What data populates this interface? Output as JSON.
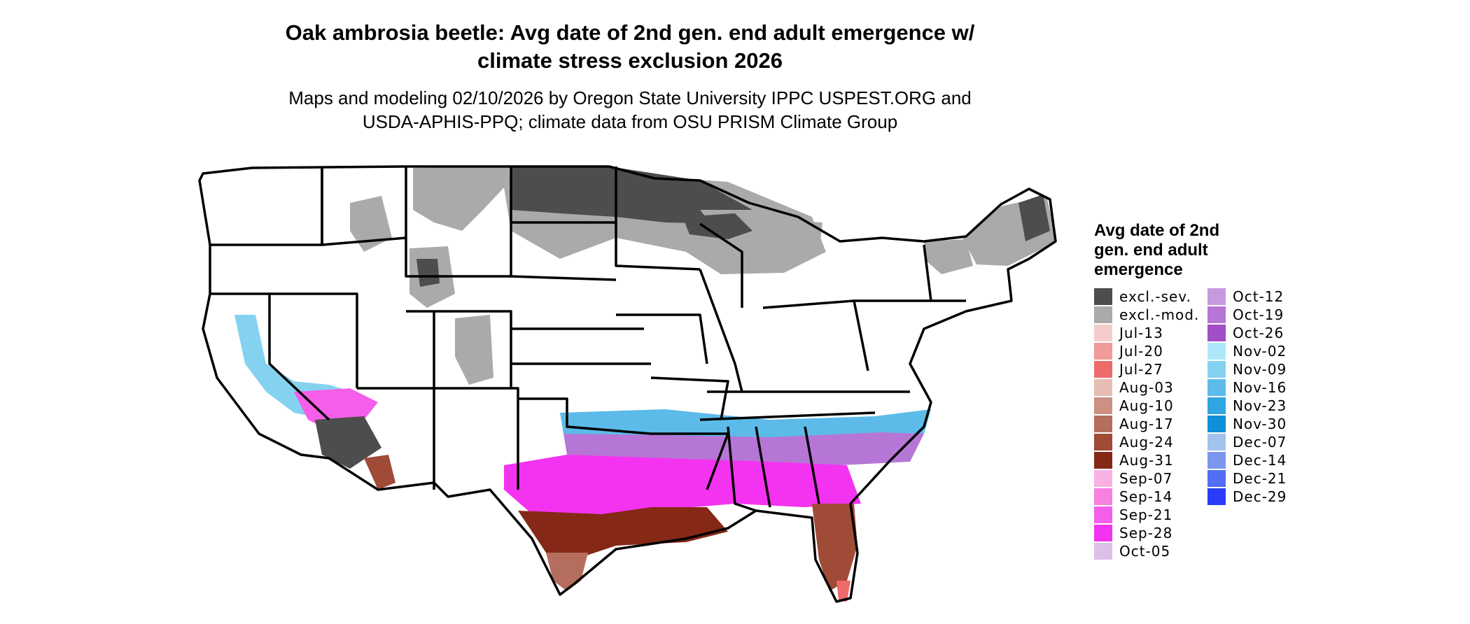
{
  "title": {
    "line1": "Oak ambrosia beetle: Avg date of 2nd gen. end adult emergence w/",
    "line2": "climate stress exclusion 2026"
  },
  "subtitle": {
    "line1": "Maps and modeling 02/10/2026 by Oregon State University IPPC USPEST.ORG and",
    "line2": "USDA-APHIS-PPQ; climate data from OSU PRISM Climate Group"
  },
  "legend": {
    "title_lines": [
      "Avg date of 2nd",
      "gen. end adult",
      "emergence"
    ],
    "columns": [
      [
        {
          "label": "excl.-sev.",
          "color": "#4d4d4d"
        },
        {
          "label": "excl.-mod.",
          "color": "#aaaaaa"
        },
        {
          "label": "Jul-13",
          "color": "#f5cccc"
        },
        {
          "label": "Jul-20",
          "color": "#f09a9a"
        },
        {
          "label": "Jul-27",
          "color": "#ee6b6b"
        },
        {
          "label": "Aug-03",
          "color": "#e7bcb2"
        },
        {
          "label": "Aug-10",
          "color": "#cc9182"
        },
        {
          "label": "Aug-17",
          "color": "#b56e5e"
        },
        {
          "label": "Aug-24",
          "color": "#a04a38"
        },
        {
          "label": "Aug-31",
          "color": "#852816"
        },
        {
          "label": "Sep-07",
          "color": "#fbb0e4"
        },
        {
          "label": "Sep-14",
          "color": "#f880de"
        },
        {
          "label": "Sep-21",
          "color": "#f55ee8"
        },
        {
          "label": "Sep-28",
          "color": "#f433f0"
        },
        {
          "label": "Oct-05",
          "color": "#dcc0e8"
        }
      ],
      [
        {
          "label": "Oct-12",
          "color": "#c79ae0"
        },
        {
          "label": "Oct-19",
          "color": "#b676d6"
        },
        {
          "label": "Oct-26",
          "color": "#a24ec7"
        },
        {
          "label": "Nov-02",
          "color": "#ade8fa"
        },
        {
          "label": "Nov-09",
          "color": "#85d2f0"
        },
        {
          "label": "Nov-16",
          "color": "#5cbbe8"
        },
        {
          "label": "Nov-23",
          "color": "#30a5df"
        },
        {
          "label": "Nov-30",
          "color": "#0f8fd6"
        },
        {
          "label": "Dec-07",
          "color": "#a3c2ec"
        },
        {
          "label": "Dec-14",
          "color": "#7a97ee"
        },
        {
          "label": "Dec-21",
          "color": "#526ef4"
        },
        {
          "label": "Dec-29",
          "color": "#2a3cf8"
        }
      ]
    ]
  }
}
